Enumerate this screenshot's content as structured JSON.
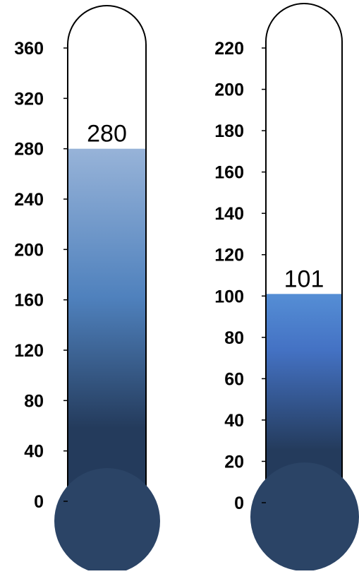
{
  "chart_data": [
    {
      "type": "thermometer",
      "value": 280,
      "value_label": "280",
      "ylim": [
        0,
        360
      ],
      "ticks": [
        0,
        40,
        80,
        120,
        160,
        200,
        240,
        280,
        320,
        360
      ],
      "tick_labels": [
        "0",
        "40",
        "80",
        "120",
        "160",
        "200",
        "240",
        "280",
        "320",
        "360"
      ],
      "fill_gradient": [
        "#243B5C",
        "#243B5C",
        "#4F81BD",
        "#97B3D8"
      ]
    },
    {
      "type": "thermometer",
      "value": 101,
      "value_label": "101",
      "ylim": [
        0,
        220
      ],
      "ticks": [
        0,
        20,
        40,
        60,
        80,
        100,
        120,
        140,
        160,
        180,
        200,
        220
      ],
      "tick_labels": [
        "0",
        "20",
        "40",
        "60",
        "80",
        "100",
        "120",
        "140",
        "160",
        "180",
        "200",
        "220"
      ],
      "fill_gradient": [
        "#243B5C",
        "#243B5C",
        "#4472C4",
        "#558ED5"
      ]
    }
  ],
  "colors": {
    "bulb": "#2B4466",
    "outline": "#000000",
    "label": "#000000"
  }
}
